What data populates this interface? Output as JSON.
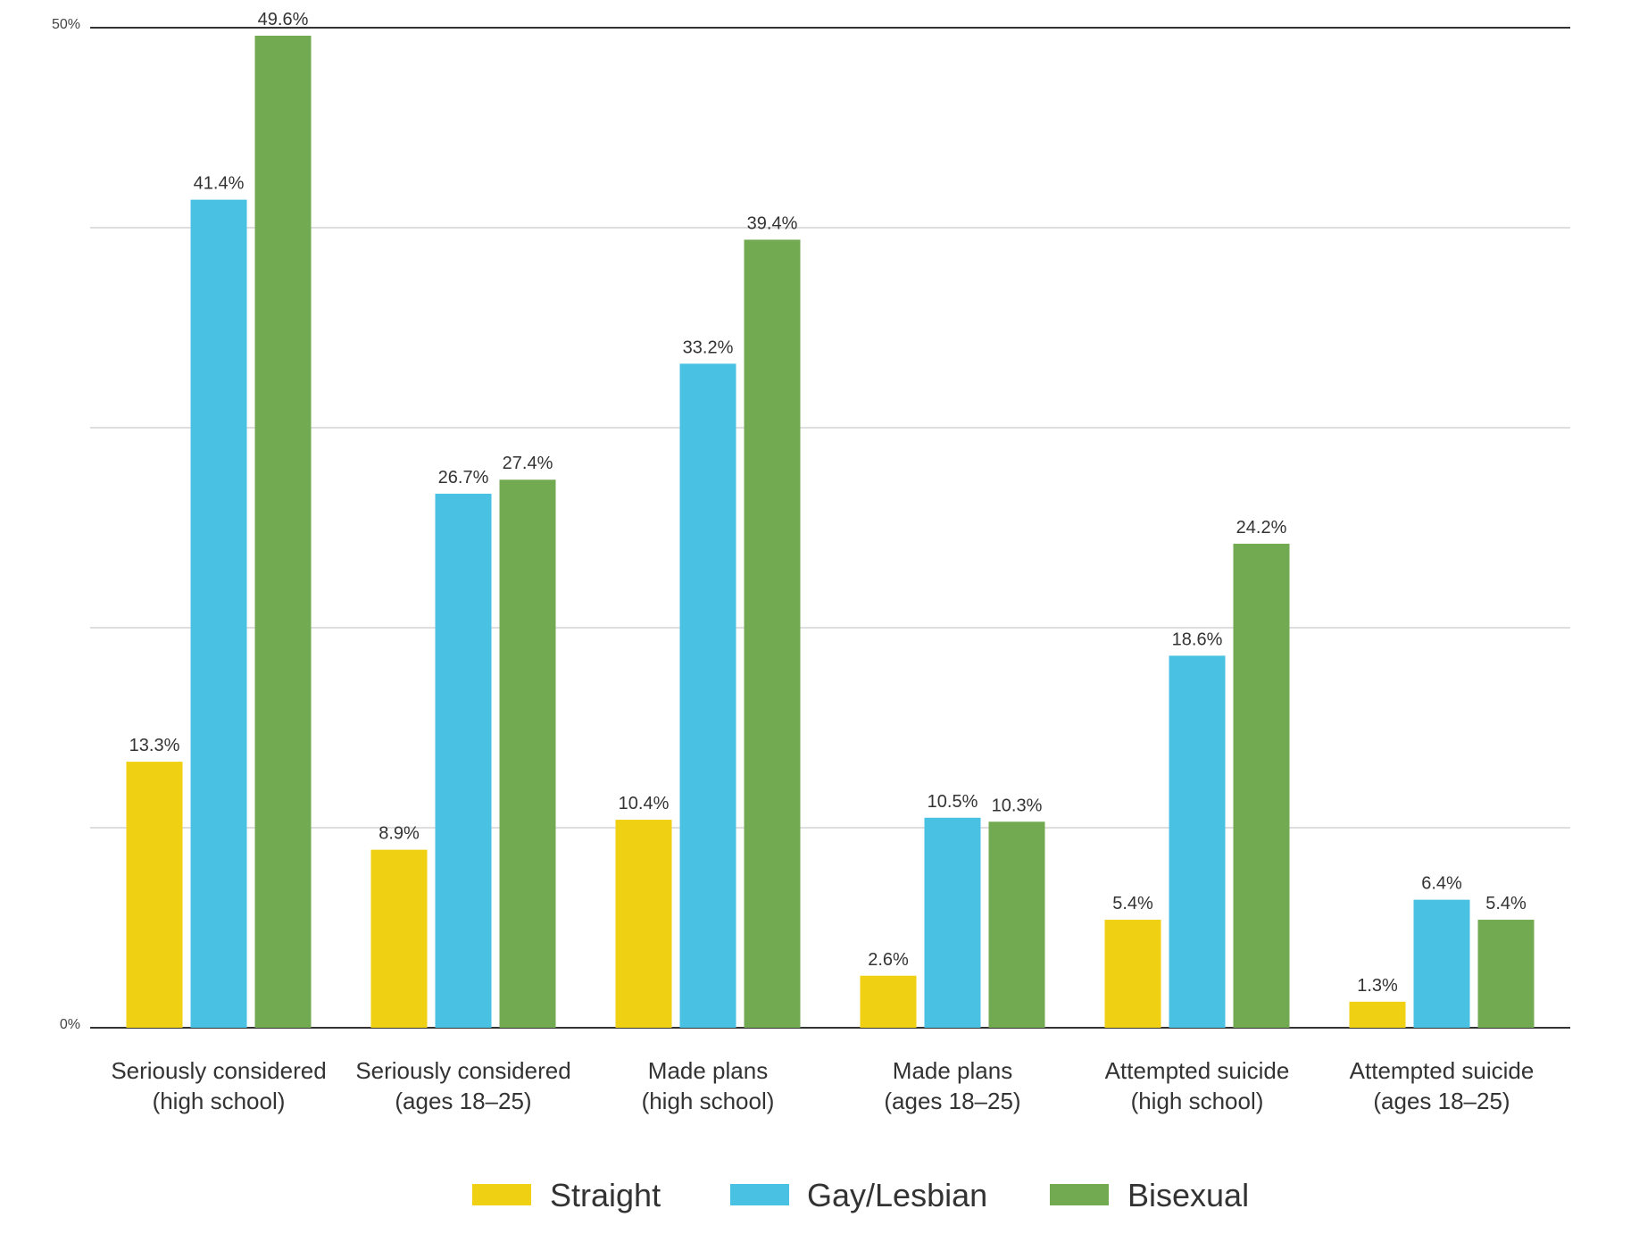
{
  "chart_data": {
    "type": "bar",
    "title": "",
    "xlabel": "",
    "ylabel": "",
    "ylim": [
      0,
      50
    ],
    "y_ticks": [
      {
        "value": 0,
        "label": "0%"
      },
      {
        "value": 50,
        "label": "50%"
      }
    ],
    "gridlines": [
      0,
      10,
      20,
      30,
      40,
      50
    ],
    "grid": true,
    "legend_position": "bottom",
    "categories": [
      {
        "line1": "Seriously considered",
        "line2": "(high school)"
      },
      {
        "line1": "Seriously considered",
        "line2": "(ages 18–25)"
      },
      {
        "line1": "Made plans",
        "line2": "(high school)"
      },
      {
        "line1": "Made plans",
        "line2": "(ages 18–25)"
      },
      {
        "line1": "Attempted suicide",
        "line2": "(high school)"
      },
      {
        "line1": "Attempted suicide",
        "line2": "(ages 18–25)"
      }
    ],
    "series": [
      {
        "name": "Straight",
        "color": "#F0D012",
        "values": [
          13.3,
          8.9,
          10.4,
          2.6,
          5.4,
          1.3
        ],
        "labels": [
          "13.3%",
          "8.9%",
          "10.4%",
          "2.6%",
          "5.4%",
          "1.3%"
        ]
      },
      {
        "name": "Gay/Lesbian",
        "color": "#48C1E3",
        "values": [
          41.4,
          26.7,
          33.2,
          10.5,
          18.6,
          6.4
        ],
        "labels": [
          "41.4%",
          "26.7%",
          "33.2%",
          "10.5%",
          "18.6%",
          "6.4%"
        ]
      },
      {
        "name": "Bisexual",
        "color": "#72AA51",
        "values": [
          49.6,
          27.4,
          39.4,
          10.3,
          24.2,
          5.4
        ],
        "labels": [
          "49.6%",
          "27.4%",
          "39.4%",
          "10.3%",
          "24.2%",
          "5.4%"
        ]
      }
    ]
  }
}
